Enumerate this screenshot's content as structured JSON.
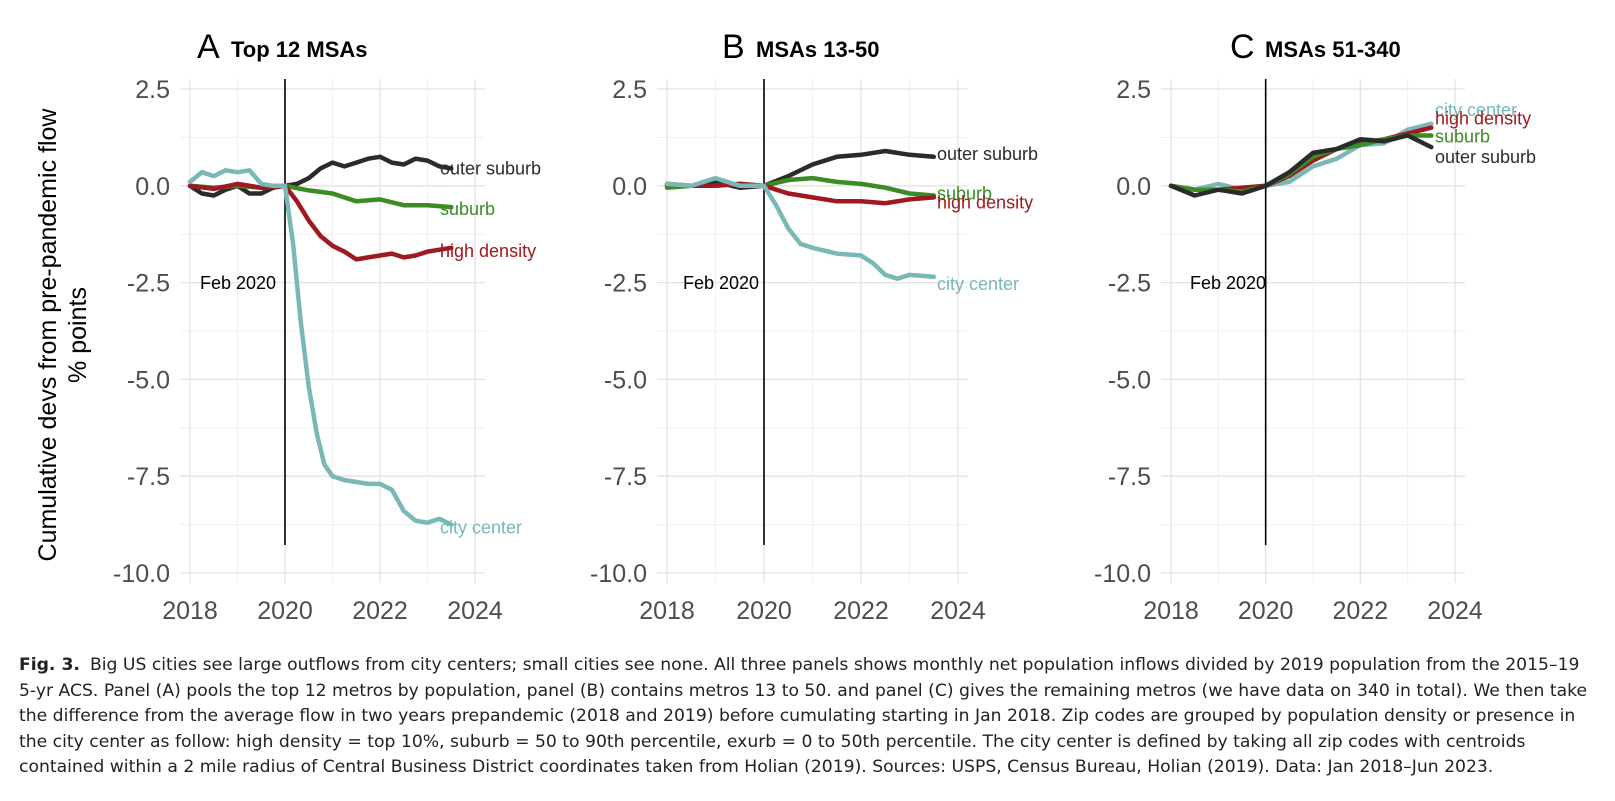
{
  "figure": {
    "ylabel_line1": "Cumulative devs from pre-pandemic flow",
    "ylabel_line2": "% points",
    "panels": [
      {
        "letter": "A",
        "title": "Top 12 MSAs",
        "annotation": "Feb 2020"
      },
      {
        "letter": "B",
        "title": "MSAs 13-50",
        "annotation": "Feb 2020"
      },
      {
        "letter": "C",
        "title": "MSAs 51-340",
        "annotation": "Feb 2020"
      }
    ]
  },
  "caption": {
    "label": "Fig. 3.",
    "text": "Big US cities see large outflows from city centers; small cities see none. All three panels shows monthly net population inflows divided by 2019 population from the 2015–19 5-yr ACS. Panel (A) pools the top 12 metros by population, panel (B) contains metros 13 to 50. and panel (C) gives the remaining metros (we have data on 340 in total). We then take the difference from the average flow in two years prepandemic (2018 and 2019) before cumulating starting in Jan 2018. Zip codes are grouped by population density or presence in the city center as follow: high density = top 10%, suburb = 50 to 90th percentile, exurb = 0 to 50th percentile. The city center is defined by taking all zip codes with centroids contained within a 2 mile radius of Central Business District coordinates taken from Holian (2019). Sources: USPS, Census Bureau, Holian (2019). Data: Jan 2018–Jun 2023."
  },
  "chart_data": [
    {
      "type": "line",
      "title": "Top 12 MSAs",
      "ylabel": "Cumulative devs from pre-pandemic flow % points",
      "xlim": [
        2018,
        2024
      ],
      "ylim": [
        -10.0,
        2.5
      ],
      "xticks": [
        "2018",
        "2020",
        "2022",
        "2024"
      ],
      "yticks": [
        "2.5",
        "0.0",
        "-2.5",
        "-5.0",
        "-7.5",
        "-10.0"
      ],
      "grid": true,
      "vline": {
        "x": 2020.0,
        "label": "Feb 2020"
      },
      "series": [
        {
          "name": "outer suburb",
          "color": "#2b2b2b",
          "x": [
            2018.0,
            2018.25,
            2018.5,
            2018.75,
            2019.0,
            2019.25,
            2019.5,
            2019.75,
            2020.0,
            2020.25,
            2020.5,
            2020.75,
            2021.0,
            2021.25,
            2021.5,
            2021.75,
            2022.0,
            2022.25,
            2022.5,
            2022.75,
            2023.0,
            2023.25,
            2023.5
          ],
          "y": [
            0.0,
            -0.2,
            -0.25,
            -0.1,
            0.0,
            -0.2,
            -0.2,
            -0.05,
            0.0,
            0.05,
            0.2,
            0.45,
            0.6,
            0.5,
            0.6,
            0.7,
            0.75,
            0.6,
            0.55,
            0.7,
            0.65,
            0.5,
            0.45
          ]
        },
        {
          "name": "suburb",
          "color": "#3d8b25",
          "x": [
            2018.0,
            2018.5,
            2019.0,
            2019.5,
            2020.0,
            2020.5,
            2021.0,
            2021.5,
            2022.0,
            2022.5,
            2023.0,
            2023.5
          ],
          "y": [
            0.0,
            -0.05,
            0.0,
            -0.05,
            0.0,
            -0.12,
            -0.2,
            -0.4,
            -0.35,
            -0.5,
            -0.5,
            -0.55
          ]
        },
        {
          "name": "high density",
          "color": "#9e1a20",
          "x": [
            2018.0,
            2018.5,
            2019.0,
            2019.5,
            2020.0,
            2020.25,
            2020.5,
            2020.75,
            2021.0,
            2021.25,
            2021.5,
            2021.75,
            2022.0,
            2022.25,
            2022.5,
            2022.75,
            2023.0,
            2023.25,
            2023.5
          ],
          "y": [
            0.0,
            -0.08,
            0.05,
            -0.05,
            0.0,
            -0.4,
            -0.9,
            -1.3,
            -1.55,
            -1.7,
            -1.9,
            -1.85,
            -1.8,
            -1.75,
            -1.85,
            -1.8,
            -1.7,
            -1.65,
            -1.6
          ]
        },
        {
          "name": "city center",
          "color": "#79b8b7",
          "x": [
            2018.0,
            2018.25,
            2018.5,
            2018.75,
            2019.0,
            2019.25,
            2019.5,
            2019.75,
            2020.0,
            2020.17,
            2020.33,
            2020.5,
            2020.67,
            2020.83,
            2021.0,
            2021.25,
            2021.5,
            2021.75,
            2022.0,
            2022.25,
            2022.5,
            2022.75,
            2023.0,
            2023.25,
            2023.5
          ],
          "y": [
            0.1,
            0.35,
            0.25,
            0.4,
            0.35,
            0.4,
            0.05,
            0.0,
            0.0,
            -1.5,
            -3.5,
            -5.2,
            -6.4,
            -7.2,
            -7.5,
            -7.6,
            -7.65,
            -7.7,
            -7.7,
            -7.85,
            -8.4,
            -8.65,
            -8.7,
            -8.6,
            -8.75
          ]
        }
      ]
    },
    {
      "type": "line",
      "title": "MSAs 13-50",
      "xlim": [
        2018,
        2024
      ],
      "ylim": [
        -10.0,
        2.5
      ],
      "xticks": [
        "2018",
        "2020",
        "2022",
        "2024"
      ],
      "yticks": [
        "2.5",
        "0.0",
        "-2.5",
        "-5.0",
        "-7.5",
        "-10.0"
      ],
      "grid": true,
      "vline": {
        "x": 2020.0,
        "label": "Feb 2020"
      },
      "series": [
        {
          "name": "outer suburb",
          "color": "#2b2b2b",
          "x": [
            2018.0,
            2018.5,
            2019.0,
            2019.5,
            2020.0,
            2020.5,
            2021.0,
            2021.5,
            2022.0,
            2022.5,
            2023.0,
            2023.5
          ],
          "y": [
            0.0,
            0.0,
            0.1,
            -0.05,
            0.0,
            0.25,
            0.55,
            0.75,
            0.8,
            0.9,
            0.8,
            0.75
          ]
        },
        {
          "name": "suburb",
          "color": "#3d8b25",
          "x": [
            2018.0,
            2018.5,
            2019.0,
            2019.5,
            2020.0,
            2020.5,
            2021.0,
            2021.5,
            2022.0,
            2022.5,
            2023.0,
            2023.5
          ],
          "y": [
            -0.05,
            0.0,
            0.0,
            0.05,
            0.0,
            0.15,
            0.2,
            0.1,
            0.05,
            -0.05,
            -0.2,
            -0.25
          ]
        },
        {
          "name": "high density",
          "color": "#9e1a20",
          "x": [
            2018.0,
            2018.5,
            2019.0,
            2019.5,
            2020.0,
            2020.5,
            2021.0,
            2021.5,
            2022.0,
            2022.5,
            2023.0,
            2023.5
          ],
          "y": [
            0.05,
            0.0,
            0.0,
            0.05,
            0.0,
            -0.2,
            -0.3,
            -0.4,
            -0.4,
            -0.45,
            -0.35,
            -0.3
          ]
        },
        {
          "name": "city center",
          "color": "#79b8b7",
          "x": [
            2018.0,
            2018.5,
            2019.0,
            2019.5,
            2020.0,
            2020.25,
            2020.5,
            2020.75,
            2021.0,
            2021.5,
            2022.0,
            2022.25,
            2022.5,
            2022.75,
            2023.0,
            2023.5
          ],
          "y": [
            0.05,
            0.0,
            0.2,
            0.0,
            0.0,
            -0.5,
            -1.1,
            -1.5,
            -1.6,
            -1.75,
            -1.8,
            -2.0,
            -2.3,
            -2.4,
            -2.3,
            -2.35
          ]
        }
      ]
    },
    {
      "type": "line",
      "title": "MSAs 51-340",
      "xlim": [
        2018,
        2024
      ],
      "ylim": [
        -10.0,
        2.5
      ],
      "xticks": [
        "2018",
        "2020",
        "2022",
        "2024"
      ],
      "yticks": [
        "2.5",
        "0.0",
        "-2.5",
        "-5.0",
        "-7.5",
        "-10.0"
      ],
      "grid": true,
      "vline": {
        "x": 2020.0,
        "label": "Feb 2020"
      },
      "series": [
        {
          "name": "city center",
          "color": "#79b8b7",
          "x": [
            2018.0,
            2018.5,
            2019.0,
            2019.5,
            2020.0,
            2020.5,
            2021.0,
            2021.5,
            2022.0,
            2022.5,
            2023.0,
            2023.5
          ],
          "y": [
            0.0,
            -0.1,
            0.05,
            -0.1,
            0.0,
            0.1,
            0.5,
            0.7,
            1.05,
            1.1,
            1.45,
            1.6
          ]
        },
        {
          "name": "high density",
          "color": "#9e1a20",
          "x": [
            2018.0,
            2018.5,
            2019.0,
            2019.5,
            2020.0,
            2020.5,
            2021.0,
            2021.5,
            2022.0,
            2022.5,
            2023.0,
            2023.5
          ],
          "y": [
            0.0,
            -0.1,
            -0.1,
            -0.05,
            0.0,
            0.25,
            0.65,
            0.95,
            1.1,
            1.2,
            1.35,
            1.5
          ]
        },
        {
          "name": "suburb",
          "color": "#3d8b25",
          "x": [
            2018.0,
            2018.5,
            2019.0,
            2019.5,
            2020.0,
            2020.5,
            2021.0,
            2021.5,
            2022.0,
            2022.5,
            2023.0,
            2023.5
          ],
          "y": [
            0.0,
            -0.1,
            -0.1,
            -0.15,
            0.0,
            0.3,
            0.75,
            0.95,
            1.05,
            1.2,
            1.3,
            1.3
          ]
        },
        {
          "name": "outer suburb",
          "color": "#2b2b2b",
          "x": [
            2018.0,
            2018.5,
            2019.0,
            2019.5,
            2020.0,
            2020.5,
            2021.0,
            2021.5,
            2022.0,
            2022.5,
            2023.0,
            2023.5
          ],
          "y": [
            0.0,
            -0.25,
            -0.1,
            -0.2,
            0.0,
            0.35,
            0.85,
            0.95,
            1.2,
            1.15,
            1.3,
            1.0
          ]
        }
      ]
    }
  ]
}
